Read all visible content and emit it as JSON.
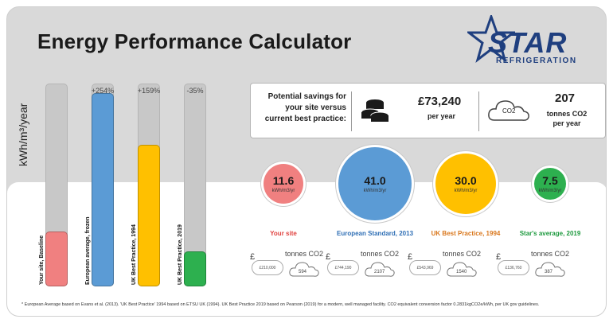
{
  "title": "Energy Performance Calculator",
  "logo": {
    "text": "STAR",
    "subtext": "REFRIGERATION"
  },
  "y_axis_label": "kWh/m³/year",
  "bars": [
    {
      "label": "Your site, Baseline",
      "pct": "",
      "value": 11.6,
      "color": "#f08080"
    },
    {
      "label": "European average, frozen",
      "pct": "+254%",
      "value": 41.0,
      "color": "#5b9bd5"
    },
    {
      "label": "UK Best Practice, 1994",
      "pct": "+159%",
      "value": 30.0,
      "color": "#ffc000"
    },
    {
      "label": "UK Best Practice, 2019",
      "pct": "-35%",
      "value": 7.5,
      "color": "#2db04f"
    }
  ],
  "bar_max": 41.0,
  "savings": {
    "description": "Potential savings for your site versus current best practice:",
    "money_value": "£73,240",
    "money_unit": "per year",
    "co2_label": "CO2",
    "co2_value": "207",
    "co2_unit_line1": "tonnes CO2",
    "co2_unit_line2": "per year"
  },
  "circles": [
    {
      "value": "11.6",
      "unit": "kWh/m3/yr",
      "name": "Your site",
      "color": "#f08080",
      "name_color": "#e0423f",
      "money": "£210,000",
      "co2": "594"
    },
    {
      "value": "41.0",
      "unit": "kWh/m3/yr",
      "name": "European Standard, 2013",
      "color": "#5b9bd5",
      "name_color": "#2f6fb5",
      "money": "£744,190",
      "co2": "2107"
    },
    {
      "value": "30.0",
      "unit": "kWh/m3/yr",
      "name": "UK Best Practice, 1994",
      "color": "#ffc000",
      "name_color": "#d9771c",
      "money": "£543,969",
      "co2": "1540"
    },
    {
      "value": "7.5",
      "unit": "kWh/m3/yr",
      "name": "Star's average, 2019",
      "color": "#2db04f",
      "name_color": "#1e9a3f",
      "money": "£136,760",
      "co2": "387"
    }
  ],
  "mini_pound": "£",
  "mini_tonnes": "tonnes CO2",
  "footnote": "* European Average based on Evans et al. (2013). 'UK Best Practice' 1994 based on ETSU UK (1994). UK Best Practice 2019 based on Pearson (2019) for a modern, well managed facility. CO2 equivalent conversion factor 0.2831kgCO2e/kWh, per UK gov guidelines."
}
